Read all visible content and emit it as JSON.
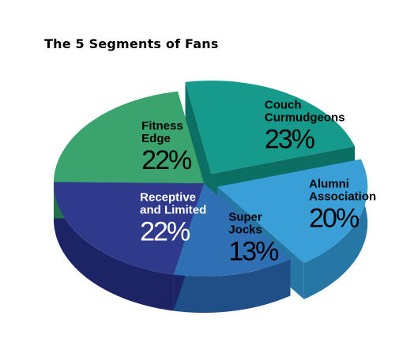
{
  "chart_data": {
    "type": "pie",
    "title": "The 5 Segments of Fans",
    "slices": [
      {
        "name_lines": [
          "Couch",
          "Curmudgeons"
        ],
        "value": 23,
        "value_label": "23%",
        "color": "#169a8c",
        "side_color": "#0b6f64",
        "text_color": "#000000"
      },
      {
        "name_lines": [
          "Alumni",
          "Association"
        ],
        "value": 20,
        "value_label": "20%",
        "color": "#3a9fd6",
        "side_color": "#2677a6",
        "text_color": "#000000"
      },
      {
        "name_lines": [
          "Super",
          "Jocks"
        ],
        "value": 13,
        "value_label": "13%",
        "color": "#2f6fb4",
        "side_color": "#1f4f86",
        "text_color": "#000000"
      },
      {
        "name_lines": [
          "Receptive",
          "and Limited"
        ],
        "value": 22,
        "value_label": "22%",
        "color": "#2f3a8c",
        "side_color": "#1c2466",
        "text_color": "#ffffff"
      },
      {
        "name_lines": [
          "Fitness",
          "Edge"
        ],
        "value": 22,
        "value_label": "22%",
        "color": "#3ba36d",
        "side_color": "#23734a",
        "text_color": "#000000"
      }
    ],
    "legend": "none",
    "style": "3d-exploded"
  }
}
